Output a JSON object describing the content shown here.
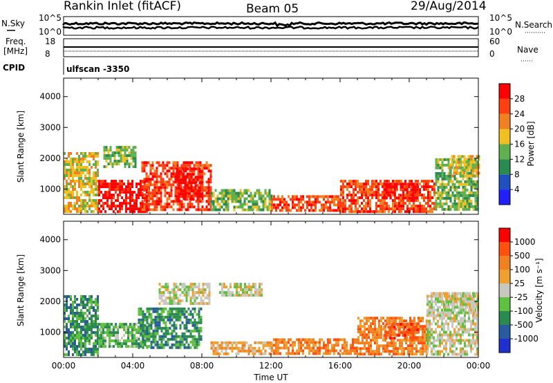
{
  "header": {
    "station": "Rankin Inlet (fitACF)",
    "beam": "Beam 05",
    "date": "29/Aug/2014"
  },
  "sky_panel": {
    "left_label": "N.Sky",
    "right_label": "N.Search",
    "left_ticks": [
      "10^5",
      "10^0"
    ],
    "right_ticks": [
      "10^5",
      "10^0"
    ]
  },
  "freq_panel": {
    "left_label_1": "Freq.",
    "left_label_2": "[MHz]",
    "right_label": "Nave",
    "left_ticks": [
      "18",
      "8"
    ],
    "right_ticks": [
      "60",
      "0"
    ]
  },
  "cpid": {
    "label": "CPID",
    "text": "ulfscan -3350"
  },
  "power_legend": {
    "title": "Power [dB]",
    "ticks": [
      "28",
      "24",
      "20",
      "16",
      "12",
      "8",
      "4"
    ],
    "colors": [
      "#2020ff",
      "#2050c0",
      "#2a8a50",
      "#60b050",
      "#f0c020",
      "#f08020",
      "#ff4010",
      "#ff0000"
    ]
  },
  "velocity_legend": {
    "title": "Velocity [m s⁻¹]",
    "ticks": [
      "1000",
      "500",
      "100",
      "25",
      "-25",
      "-100",
      "-500",
      "-1000"
    ],
    "colors": [
      "#2030d0",
      "#2a5aa0",
      "#2a8a50",
      "#60c040",
      "#c8c8c0",
      "#f0a030",
      "#f08020",
      "#ff5010",
      "#ff0000"
    ]
  },
  "chart_data": [
    {
      "type": "heatmap",
      "title": "",
      "xlabel": "",
      "ylabel": "Slant Range [km]",
      "colorbar_label": "Power [dB]",
      "x_ticks": [
        "00:00",
        "04:00",
        "08:00",
        "12:00",
        "16:00",
        "20:00",
        "00:00"
      ],
      "y_ticks": [
        "1000",
        "2000",
        "3000",
        "4000"
      ],
      "xlim": [
        "00:00",
        "24:00"
      ],
      "ylim": [
        180,
        4600
      ],
      "regions": [
        {
          "t": [
            0.0,
            2.0
          ],
          "r": [
            300,
            2200
          ],
          "level": 4
        },
        {
          "t": [
            2.0,
            5.0
          ],
          "r": [
            300,
            1300
          ],
          "level": 7
        },
        {
          "t": [
            2.3,
            4.2
          ],
          "r": [
            1700,
            2400
          ],
          "level": 3
        },
        {
          "t": [
            4.5,
            8.5
          ],
          "r": [
            300,
            1900
          ],
          "level": 6
        },
        {
          "t": [
            6.5,
            8.0
          ],
          "r": [
            700,
            1700
          ],
          "level": 7
        },
        {
          "t": [
            8.5,
            12.0
          ],
          "r": [
            300,
            1000
          ],
          "level": 3
        },
        {
          "t": [
            12.0,
            16.0
          ],
          "r": [
            300,
            800
          ],
          "level": 6
        },
        {
          "t": [
            16.0,
            21.5
          ],
          "r": [
            300,
            1300
          ],
          "level": 6
        },
        {
          "t": [
            18.5,
            20.5
          ],
          "r": [
            700,
            1200
          ],
          "level": 7
        },
        {
          "t": [
            21.5,
            24.0
          ],
          "r": [
            300,
            2000
          ],
          "level": 3
        },
        {
          "t": [
            22.3,
            24.0
          ],
          "r": [
            1400,
            2100
          ],
          "level": 4
        }
      ]
    },
    {
      "type": "heatmap",
      "title": "",
      "xlabel": "Time UT",
      "ylabel": "Slant Range [km]",
      "colorbar_label": "Velocity [m s⁻¹]",
      "x_ticks": [
        "00:00",
        "04:00",
        "08:00",
        "12:00",
        "16:00",
        "20:00",
        "00:00"
      ],
      "y_ticks": [
        "1000",
        "2000",
        "3000",
        "4000"
      ],
      "xlim": [
        "00:00",
        "24:00"
      ],
      "ylim": [
        180,
        4600
      ],
      "regions": [
        {
          "t": [
            0.0,
            2.0
          ],
          "r": [
            300,
            2200
          ],
          "level": 2
        },
        {
          "t": [
            2.0,
            5.0
          ],
          "r": [
            500,
            1300
          ],
          "level": 3
        },
        {
          "t": [
            4.3,
            8.0
          ],
          "r": [
            500,
            1800
          ],
          "level": 2
        },
        {
          "t": [
            5.5,
            8.5
          ],
          "r": [
            1900,
            2600
          ],
          "level": 4
        },
        {
          "t": [
            8.5,
            12.0
          ],
          "r": [
            300,
            700
          ],
          "level": 5
        },
        {
          "t": [
            9.0,
            11.5
          ],
          "r": [
            2200,
            2600
          ],
          "level": 4
        },
        {
          "t": [
            12.0,
            17.0
          ],
          "r": [
            300,
            800
          ],
          "level": 6
        },
        {
          "t": [
            17.0,
            21.0
          ],
          "r": [
            300,
            1500
          ],
          "level": 6
        },
        {
          "t": [
            18.5,
            20.5
          ],
          "r": [
            800,
            1300
          ],
          "level": 7
        },
        {
          "t": [
            21.0,
            24.0
          ],
          "r": [
            300,
            2300
          ],
          "level": 4
        },
        {
          "t": [
            22.0,
            24.0
          ],
          "r": [
            1600,
            2300
          ],
          "level": 4
        }
      ]
    }
  ]
}
